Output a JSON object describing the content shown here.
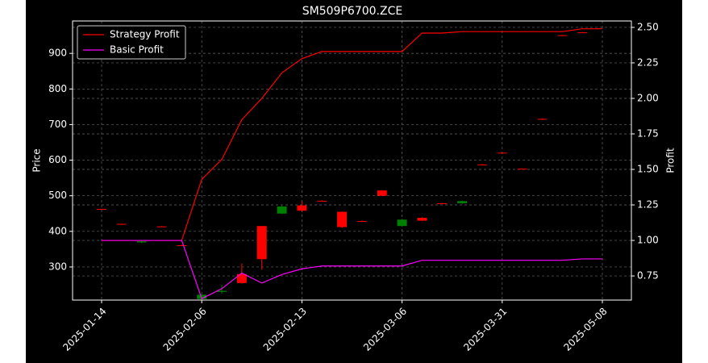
{
  "chart_data": {
    "type": "candlestick",
    "title": "SM509P6700.ZCE",
    "y_label": "Price",
    "y2_label": "Profit",
    "categories": [
      "2025-01-14",
      null,
      null,
      null,
      null,
      "2025-02-06",
      null,
      null,
      null,
      null,
      "2025-02-13",
      null,
      null,
      null,
      null,
      "2025-03-06",
      null,
      null,
      null,
      null,
      "2025-03-31",
      null,
      null,
      null,
      null,
      "2025-05-08"
    ],
    "candles": {
      "open": [
        463,
        421,
        369,
        414,
        361,
        210,
        230,
        280,
        415,
        450,
        473,
        486,
        455,
        429,
        515,
        415,
        438,
        479,
        479,
        588,
        621,
        576,
        716,
        951,
        959,
        null
      ],
      "high": [
        464,
        422,
        373,
        415,
        362,
        225,
        250,
        310,
        415,
        472,
        485,
        487,
        456,
        430,
        516,
        435,
        440,
        480,
        486,
        589,
        622,
        577,
        717,
        952,
        960,
        null
      ],
      "low": [
        461,
        419,
        367,
        412,
        359,
        207,
        225,
        253,
        292,
        449,
        456,
        484,
        410,
        427,
        499,
        414,
        429,
        477,
        477,
        586,
        619,
        574,
        714,
        949,
        957,
        null
      ],
      "close": [
        462,
        420,
        372,
        413,
        360,
        222,
        233,
        255,
        322,
        470,
        458,
        485,
        412,
        428,
        500,
        433,
        430,
        478,
        485,
        587,
        620,
        575,
        715,
        950,
        958,
        null
      ],
      "up_color": "#008000",
      "down_color": "#ff0000"
    },
    "series": [
      {
        "name": "Strategy Profit",
        "color": "#ff0000",
        "axis": "y2",
        "values": [
          1.0,
          1.0,
          1.0,
          1.0,
          1.0,
          1.43,
          1.57,
          1.85,
          2.0,
          2.18,
          2.28,
          2.33,
          2.33,
          2.33,
          2.33,
          2.33,
          2.46,
          2.46,
          2.47,
          2.47,
          2.47,
          2.47,
          2.47,
          2.47,
          2.49,
          2.49
        ]
      },
      {
        "name": "Basic Profit",
        "color": "#ff00ff",
        "axis": "y2",
        "values": [
          1.0,
          1.0,
          1.0,
          1.0,
          1.0,
          0.59,
          0.66,
          0.77,
          0.7,
          0.76,
          0.8,
          0.82,
          0.82,
          0.82,
          0.82,
          0.82,
          0.86,
          0.86,
          0.86,
          0.86,
          0.86,
          0.86,
          0.86,
          0.86,
          0.87,
          0.87
        ]
      }
    ],
    "ylim": [
      207,
      991
    ],
    "yticks": [
      300,
      400,
      500,
      600,
      700,
      800,
      900
    ],
    "y2lim": [
      0.58,
      2.545
    ],
    "y2ticks": [
      0.75,
      {
        "value": 1.0,
        "label": "1.00"
      },
      1.25,
      {
        "value": 1.5,
        "label": "1.50"
      },
      1.75,
      {
        "value": 2.0,
        "label": "2.00"
      },
      2.25,
      {
        "value": 2.5,
        "label": "2.50"
      }
    ],
    "grid": true,
    "legend": "upper left"
  }
}
